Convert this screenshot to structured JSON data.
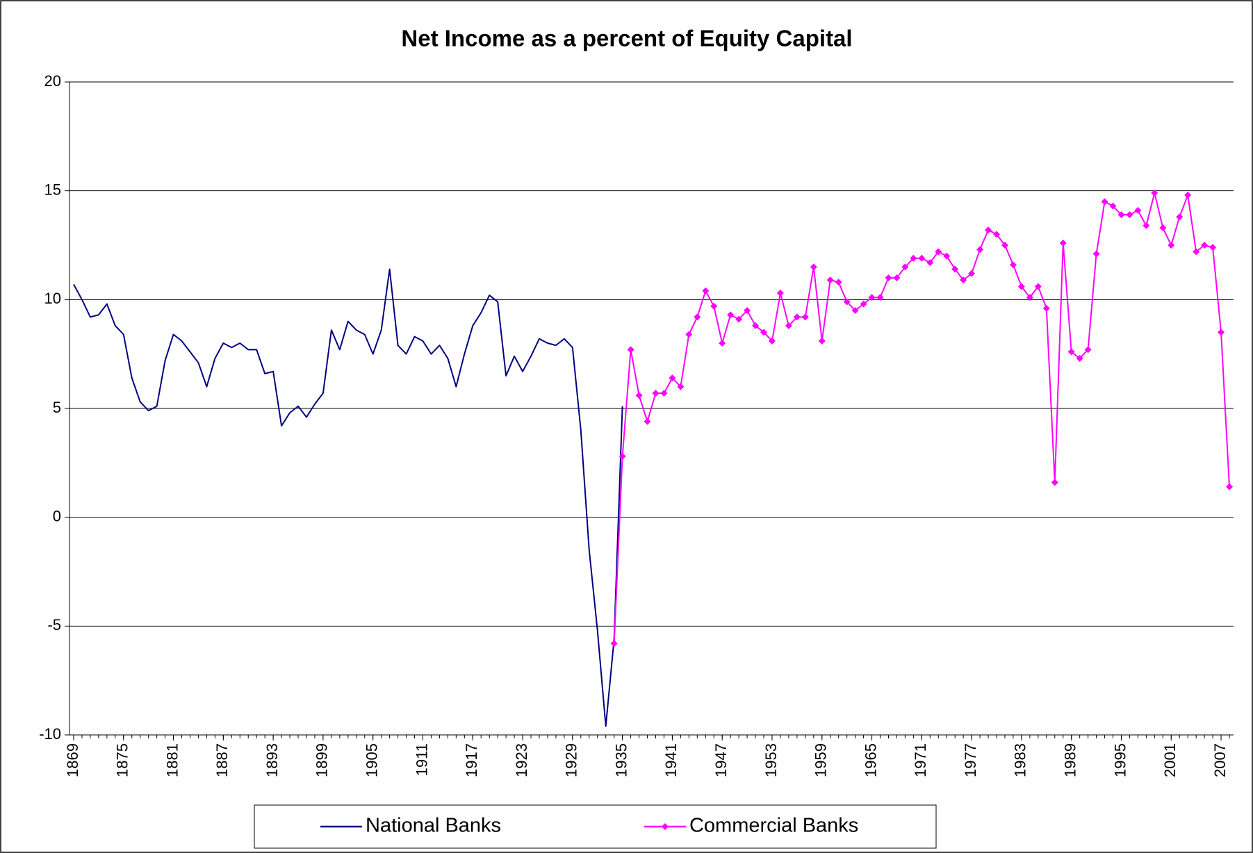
{
  "chart_data": {
    "type": "line",
    "title": "Net Income as a percent of Equity Capital",
    "xlim": [
      1868.5,
      2008.5
    ],
    "xticks": [
      1869,
      1875,
      1881,
      1887,
      1893,
      1899,
      1905,
      1911,
      1917,
      1923,
      1929,
      1935,
      1941,
      1947,
      1953,
      1959,
      1965,
      1971,
      1977,
      1983,
      1989,
      1995,
      2001,
      2007
    ],
    "ylim": [
      -10,
      20
    ],
    "yticks": [
      -10,
      -5,
      0,
      5,
      10,
      15,
      20
    ],
    "grid": true,
    "legend": "bottom",
    "series": [
      {
        "name": "National Banks",
        "color": "#000080",
        "marker": "none",
        "x": [
          1869,
          1870,
          1871,
          1872,
          1873,
          1874,
          1875,
          1876,
          1877,
          1878,
          1879,
          1880,
          1881,
          1882,
          1883,
          1884,
          1885,
          1886,
          1887,
          1888,
          1889,
          1890,
          1891,
          1892,
          1893,
          1894,
          1895,
          1896,
          1897,
          1898,
          1899,
          1900,
          1901,
          1902,
          1903,
          1904,
          1905,
          1906,
          1907,
          1908,
          1909,
          1910,
          1911,
          1912,
          1913,
          1914,
          1915,
          1916,
          1917,
          1918,
          1919,
          1920,
          1921,
          1922,
          1923,
          1924,
          1925,
          1926,
          1927,
          1928,
          1929,
          1930,
          1931,
          1932,
          1933,
          1934,
          1935
        ],
        "values": [
          10.7,
          10.0,
          9.2,
          9.3,
          9.8,
          8.8,
          8.4,
          6.4,
          5.3,
          4.9,
          5.1,
          7.2,
          8.4,
          8.1,
          7.6,
          7.1,
          6.0,
          7.3,
          8.0,
          7.8,
          8.0,
          7.7,
          7.7,
          6.6,
          6.7,
          4.2,
          4.8,
          5.1,
          4.6,
          5.2,
          5.7,
          8.6,
          7.7,
          9.0,
          8.6,
          8.4,
          7.5,
          8.6,
          11.4,
          7.9,
          7.5,
          8.3,
          8.1,
          7.5,
          7.9,
          7.3,
          6.0,
          7.5,
          8.8,
          9.4,
          10.2,
          9.9,
          6.5,
          7.4,
          6.7,
          7.4,
          8.2,
          8.0,
          7.9,
          8.2,
          7.8,
          4.0,
          -1.5,
          -5.2,
          -9.6,
          -5.6,
          5.1
        ]
      },
      {
        "name": "Commercial Banks",
        "color": "#ff00ff",
        "marker": "diamond",
        "x": [
          1934,
          1935,
          1936,
          1937,
          1938,
          1939,
          1940,
          1941,
          1942,
          1943,
          1944,
          1945,
          1946,
          1947,
          1948,
          1949,
          1950,
          1951,
          1952,
          1953,
          1954,
          1955,
          1956,
          1957,
          1958,
          1959,
          1960,
          1961,
          1962,
          1963,
          1964,
          1965,
          1966,
          1967,
          1968,
          1969,
          1970,
          1971,
          1972,
          1973,
          1974,
          1975,
          1976,
          1977,
          1978,
          1979,
          1980,
          1981,
          1982,
          1983,
          1984,
          1985,
          1986,
          1987,
          1988,
          1989,
          1990,
          1991,
          1992,
          1993,
          1994,
          1995,
          1996,
          1997,
          1998,
          1999,
          2000,
          2001,
          2002,
          2003,
          2004,
          2005,
          2006,
          2007,
          2008
        ],
        "values": [
          -5.8,
          2.8,
          7.7,
          5.6,
          4.4,
          5.7,
          5.7,
          6.4,
          6.0,
          8.4,
          9.2,
          10.4,
          9.7,
          8.0,
          9.3,
          9.1,
          9.5,
          8.8,
          8.5,
          8.1,
          10.3,
          8.8,
          9.2,
          9.2,
          11.5,
          8.1,
          10.9,
          10.8,
          9.9,
          9.5,
          9.8,
          10.1,
          10.1,
          11.0,
          11.0,
          11.5,
          11.9,
          11.9,
          11.7,
          12.2,
          12.0,
          11.4,
          10.9,
          11.2,
          12.3,
          13.2,
          13.0,
          12.5,
          11.6,
          10.6,
          10.1,
          10.6,
          9.6,
          1.6,
          12.6,
          7.6,
          7.3,
          7.7,
          12.1,
          14.5,
          14.3,
          13.9,
          13.9,
          14.1,
          13.4,
          14.9,
          13.3,
          12.5,
          13.8,
          14.8,
          12.2,
          12.5,
          12.4,
          8.5,
          1.4
        ]
      }
    ]
  }
}
